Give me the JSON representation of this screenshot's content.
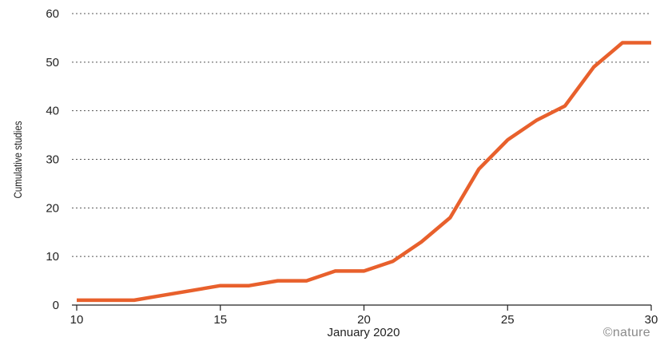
{
  "chart_data": {
    "type": "line",
    "title": "",
    "xlabel": "January 2020",
    "ylabel": "Cumulative studies",
    "xlim": [
      10,
      30
    ],
    "ylim": [
      0,
      60
    ],
    "xticks": [
      10,
      15,
      20,
      25,
      30
    ],
    "yticks": [
      0,
      10,
      20,
      30,
      40,
      50,
      60
    ],
    "grid": "horizontal dotted",
    "legend": "none",
    "series": [
      {
        "color": "#e8602c",
        "x": [
          10,
          11,
          12,
          13,
          14,
          15,
          16,
          17,
          18,
          19,
          20,
          21,
          22,
          23,
          24,
          25,
          26,
          27,
          28,
          29,
          30
        ],
        "y": [
          1,
          1,
          1,
          2,
          3,
          4,
          4,
          5,
          5,
          7,
          7,
          9,
          13,
          18,
          28,
          34,
          38,
          41,
          49,
          54,
          54
        ]
      }
    ]
  },
  "credit": "©nature"
}
